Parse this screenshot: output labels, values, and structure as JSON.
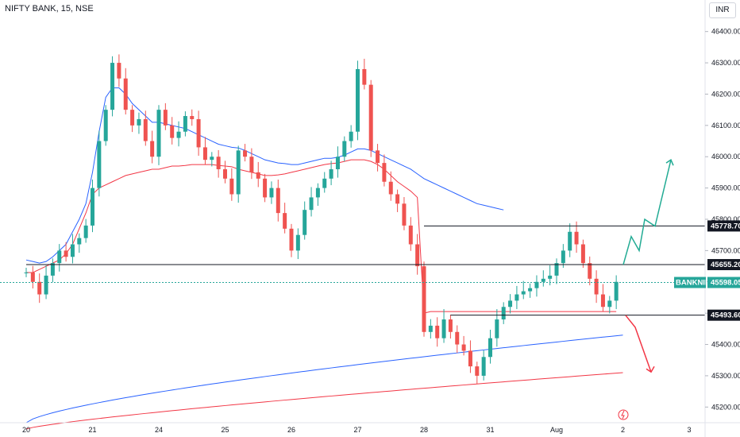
{
  "header": {
    "symbol_line": "NIFTY BANK, 15, NSE",
    "currency": "INR"
  },
  "chart_data": {
    "type": "candlestick",
    "symbol": "NIFTY BANK",
    "interval": "15",
    "exchange": "NSE",
    "y_ticks": [
      45200,
      45300,
      45400,
      45500,
      45600,
      45700,
      45800,
      45900,
      46000,
      46100,
      46200,
      46300,
      46400
    ],
    "y_tick_labels": [
      "45200.00",
      "45300.00",
      "45400.00",
      "45500.00",
      "45600.00",
      "45700.00",
      "45800.00",
      "45900.00",
      "46000.00",
      "46100.00",
      "46200.00",
      "46300.00",
      "46400.00"
    ],
    "ylim": [
      45150,
      46450
    ],
    "x_labels": [
      "20",
      "21",
      "24",
      "25",
      "26",
      "27",
      "28",
      "31",
      "Aug",
      "2",
      "3"
    ],
    "x_label_index": [
      0,
      10,
      20,
      30,
      40,
      50,
      60,
      70,
      80,
      90,
      100
    ],
    "price_tags": [
      {
        "label": "45778.70",
        "value": 45778.7,
        "style": "dark"
      },
      {
        "label": "45655.20",
        "value": 45655.2,
        "style": "dark"
      },
      {
        "label": "45598.05",
        "value": 45598.05,
        "style": "teal",
        "name": "BANKNIFTY"
      },
      {
        "label": "45493.60",
        "value": 45493.6,
        "style": "dark"
      }
    ],
    "horizontal_lines": [
      {
        "value": 45778.7,
        "from_index": 60,
        "to_index": 105
      },
      {
        "value": 45655.2,
        "from_index": 0,
        "to_index": 105
      },
      {
        "value": 45493.6,
        "from_index": 64,
        "to_index": 105
      }
    ],
    "last_price_line": 45598.05,
    "closes": [
      45630,
      45600,
      45560,
      45620,
      45660,
      45700,
      45680,
      45720,
      45740,
      45780,
      45900,
      46050,
      46150,
      46300,
      46250,
      46150,
      46100,
      46120,
      46050,
      46000,
      46150,
      46100,
      46060,
      46080,
      46130,
      46120,
      46030,
      45990,
      46000,
      45960,
      45930,
      45880,
      46020,
      46000,
      45950,
      45930,
      45870,
      45900,
      45820,
      45770,
      45700,
      45750,
      45830,
      45870,
      45900,
      45930,
      45960,
      46000,
      46050,
      46080,
      46280,
      46230,
      46020,
      45980,
      45920,
      45880,
      45850,
      45780,
      45720,
      45650,
      45440,
      45460,
      45420,
      45480,
      45440,
      45400,
      45380,
      45330,
      45300,
      45360,
      45420,
      45480,
      45520,
      45540,
      45560,
      45570,
      45580,
      45600,
      45610,
      45620,
      45660,
      45700,
      45760,
      45720,
      45660,
      45610,
      45560,
      45520,
      45540,
      45600
    ],
    "ema_blue": [
      45670,
      45665,
      45660,
      45665,
      45680,
      45700,
      45720,
      45760,
      45800,
      45850,
      45950,
      46080,
      46190,
      46220,
      46220,
      46200,
      46170,
      46150,
      46130,
      46110,
      46110,
      46105,
      46100,
      46095,
      46090,
      46080,
      46070,
      46060,
      46050,
      46040,
      46035,
      46030,
      46028,
      46020,
      46010,
      46000,
      45990,
      45985,
      45980,
      45978,
      45975,
      45975,
      45980,
      45985,
      45990,
      45995,
      45995,
      45998,
      46005,
      46015,
      46025,
      46025,
      46020,
      46010,
      46000,
      45990,
      45980,
      45970,
      45960,
      45945,
      45930,
      45920,
      45910,
      45900,
      45890,
      45880,
      45870,
      45860,
      45850,
      45845,
      45840,
      45835,
      45830
    ],
    "ema_red": [
      45630,
      45630,
      45640,
      45650,
      45660,
      45670,
      45690,
      45720,
      45770,
      45820,
      45880,
      45900,
      45910,
      45920,
      45930,
      45940,
      45945,
      45950,
      45955,
      45960,
      45960,
      45965,
      45970,
      45970,
      45972,
      45975,
      45975,
      45975,
      45975,
      45972,
      45970,
      45968,
      45960,
      45955,
      45950,
      45945,
      45940,
      45940,
      45942,
      45945,
      45950,
      45955,
      45960,
      45965,
      45970,
      45975,
      45978,
      45980,
      45985,
      45990,
      45990,
      45990,
      45985,
      45975,
      45960,
      45940,
      45920,
      45905,
      45890,
      45870,
      45500,
      45505,
      45505,
      45505,
      45505,
      45505,
      45505,
      45505,
      45505,
      45505,
      45505,
      45505,
      45505,
      45505,
      45505,
      45505,
      45505,
      45505,
      45505,
      45505,
      45505,
      45505,
      45505,
      45505,
      45505,
      45505,
      45505,
      45505,
      45505,
      45505
    ],
    "projection_up": [
      45655,
      45745,
      45700,
      45800,
      45778,
      45990
    ],
    "projection_down": [
      45493,
      45455,
      45312
    ],
    "grid": false,
    "legend": "none"
  }
}
